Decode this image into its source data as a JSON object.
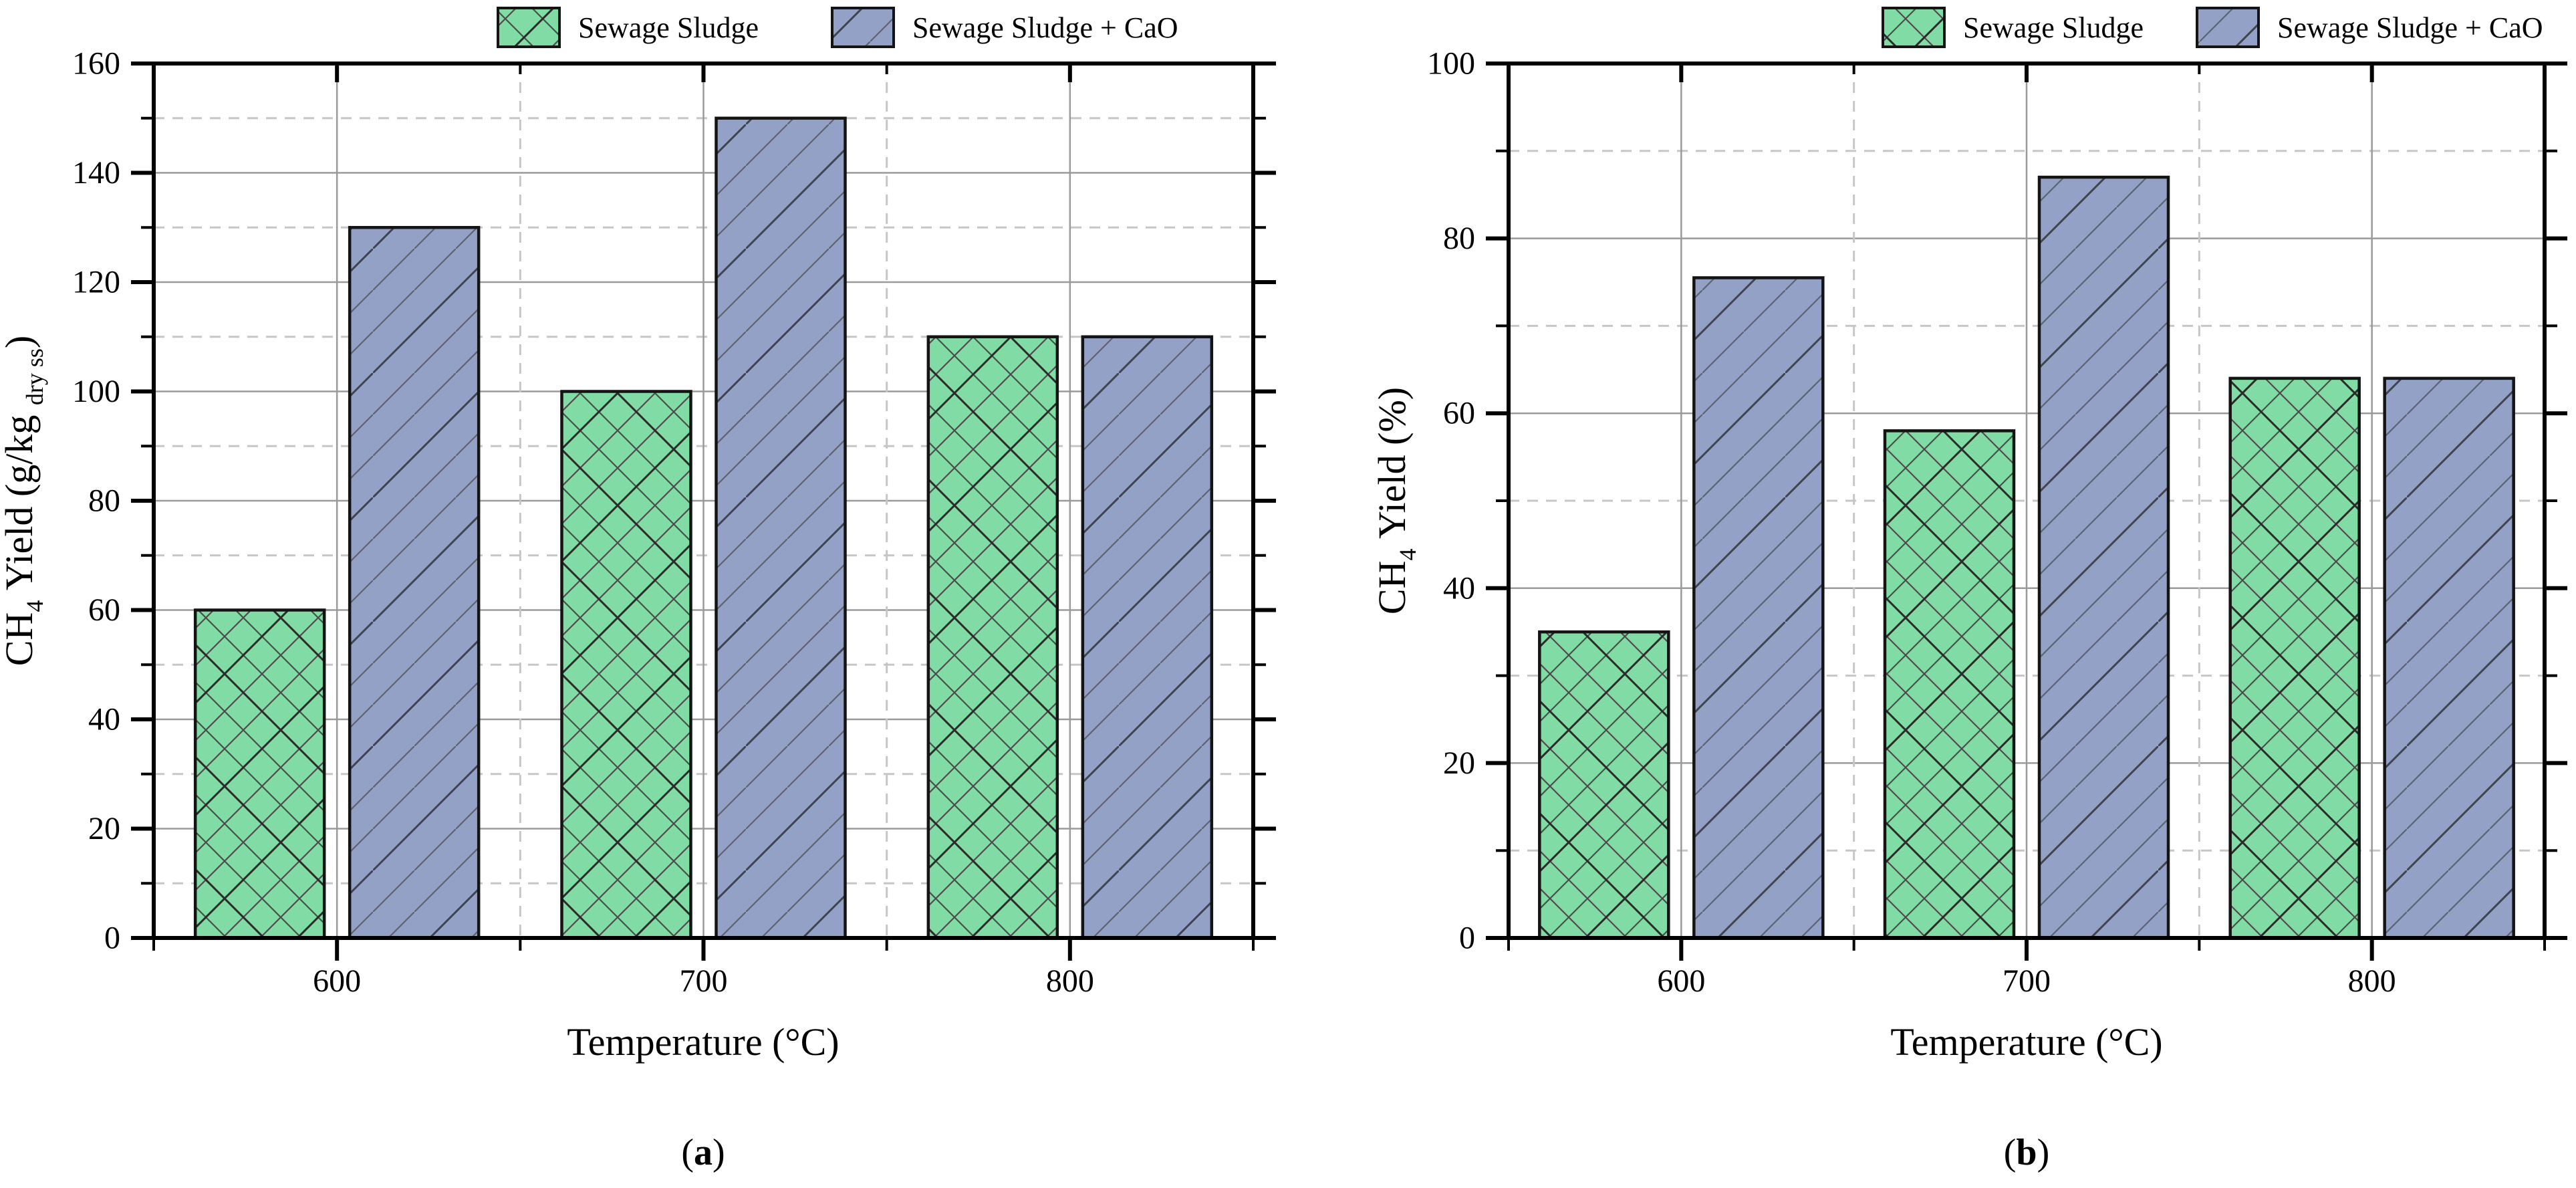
{
  "colors": {
    "bar_green": "#80dca4",
    "bar_blue": "#93a1c6",
    "hatch_green": "#4c4c4c",
    "hatch_green_dark": "#2b2b2b",
    "hatch_blue": "#5d6270",
    "hatch_blue_dark": "#3f4450",
    "bar_border": "#141414",
    "grid_major": "#9a9a9a",
    "grid_minor": "#c6c6c6",
    "axis": "#000000"
  },
  "legend": {
    "items": [
      {
        "label": "Sewage Sludge",
        "swatch": "green-crosshatch"
      },
      {
        "label": "Sewage Sludge + CaO",
        "swatch": "blue-diagonal-hatch"
      }
    ]
  },
  "chart_data": [
    {
      "type": "bar",
      "panel": "a",
      "categories": [
        "600",
        "700",
        "800"
      ],
      "x_centers": [
        600,
        700,
        800
      ],
      "xlim": [
        550,
        850
      ],
      "x_minor": [
        550,
        650,
        750,
        850
      ],
      "series": [
        {
          "name": "Sewage Sludge",
          "values": [
            60,
            100,
            110
          ]
        },
        {
          "name": "Sewage Sludge + CaO",
          "values": [
            130,
            150,
            110
          ]
        }
      ],
      "xlabel": "Temperature (°C)",
      "ylabel": "CH4 Yield (g/kg dry ss)",
      "ylabel_parts": {
        "pre": "CH",
        "sub": "4",
        "mid": " Yield (g/kg ",
        "sub2": "dry ss",
        "post": ")"
      },
      "ylim": [
        0,
        160
      ],
      "y_ticks": [
        0,
        20,
        40,
        60,
        80,
        100,
        120,
        140,
        160
      ],
      "y_major_step": 20,
      "y_minor_step": 10,
      "grid": true,
      "legend_position": "top",
      "caption": {
        "open": "(",
        "letter": "a",
        "close": ")"
      }
    },
    {
      "type": "bar",
      "panel": "b",
      "categories": [
        "600",
        "700",
        "800"
      ],
      "x_centers": [
        600,
        700,
        800
      ],
      "xlim": [
        550,
        850
      ],
      "x_minor": [
        550,
        650,
        750,
        850
      ],
      "series": [
        {
          "name": "Sewage Sludge",
          "values": [
            35,
            58,
            64
          ]
        },
        {
          "name": "Sewage Sludge + CaO",
          "values": [
            75.5,
            87,
            64
          ]
        }
      ],
      "xlabel": "Temperature (°C)",
      "ylabel": "CH4 Yield (%)",
      "ylabel_parts": {
        "pre": "CH",
        "sub": "4",
        "mid": " Yield (%)",
        "sub2": "",
        "post": ""
      },
      "ylim": [
        0,
        100
      ],
      "y_ticks": [
        0,
        20,
        40,
        60,
        80,
        100
      ],
      "y_major_step": 20,
      "y_minor_step": 10,
      "grid": true,
      "legend_position": "top",
      "caption": {
        "open": "(",
        "letter": "b",
        "close": ")"
      }
    }
  ]
}
